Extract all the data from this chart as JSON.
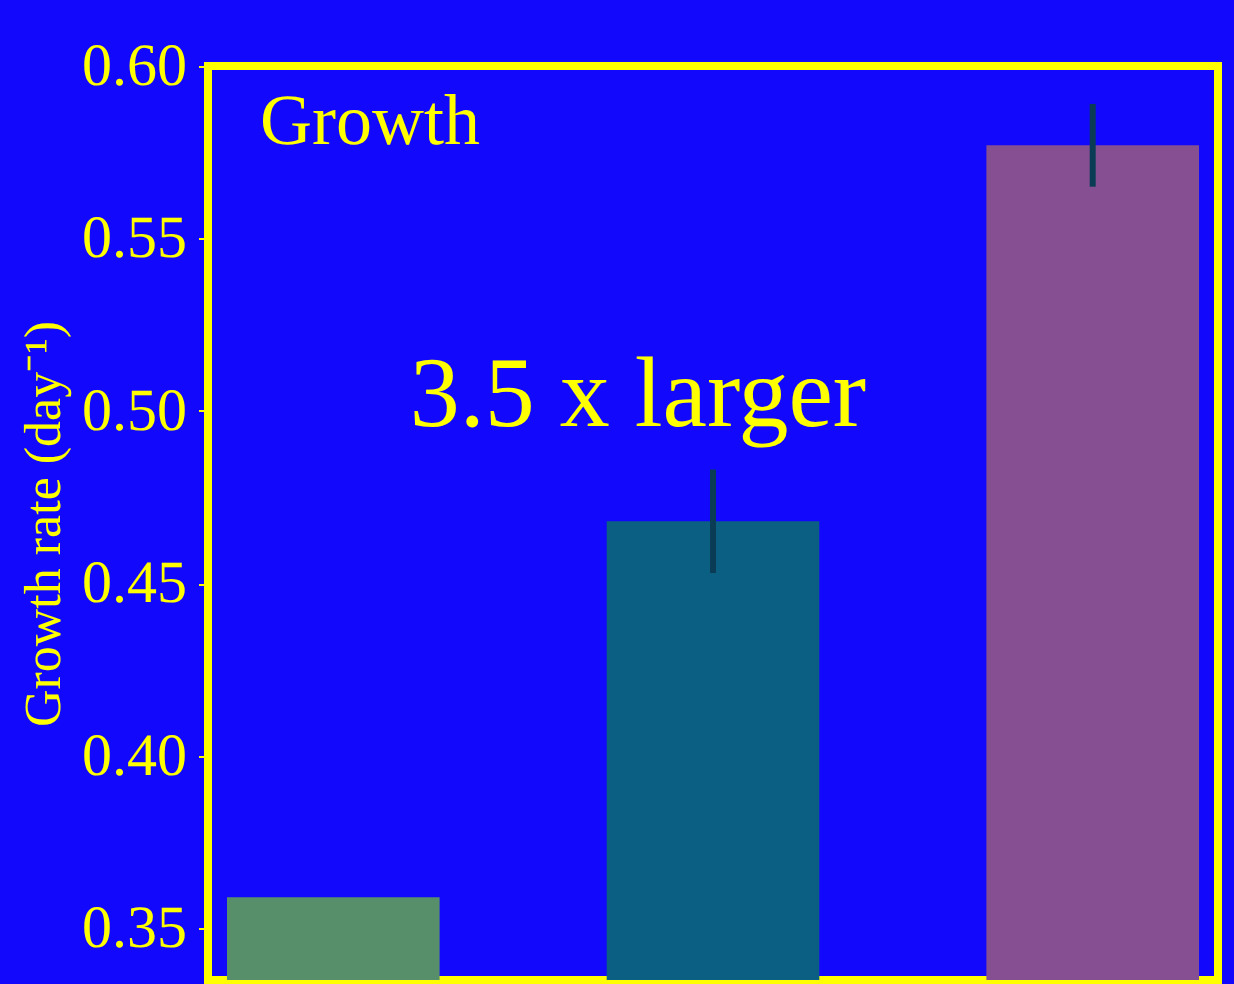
{
  "chart_data": {
    "type": "bar",
    "title": "Growth",
    "ylabel": "Growth rate (day⁻¹)",
    "annotations": [
      "3.5 x larger"
    ],
    "categories": [
      null,
      null,
      null
    ],
    "values": [
      0.359,
      0.468,
      0.577
    ],
    "colors": [
      "#568f6a",
      "#0b5f82",
      "#854f91"
    ],
    "errors": [
      null,
      0.015,
      0.012
    ],
    "ylim": [
      0.335,
      0.6
    ],
    "yticks": [
      {
        "value": 0.35,
        "label": "0.35"
      },
      {
        "value": 0.4,
        "label": "0.40"
      },
      {
        "value": 0.45,
        "label": "0.45"
      },
      {
        "value": 0.5,
        "label": "0.50"
      },
      {
        "value": 0.55,
        "label": "0.55"
      },
      {
        "value": 0.6,
        "label": "0.60"
      }
    ],
    "tick_labels": "y",
    "grid": false,
    "legend": false
  }
}
